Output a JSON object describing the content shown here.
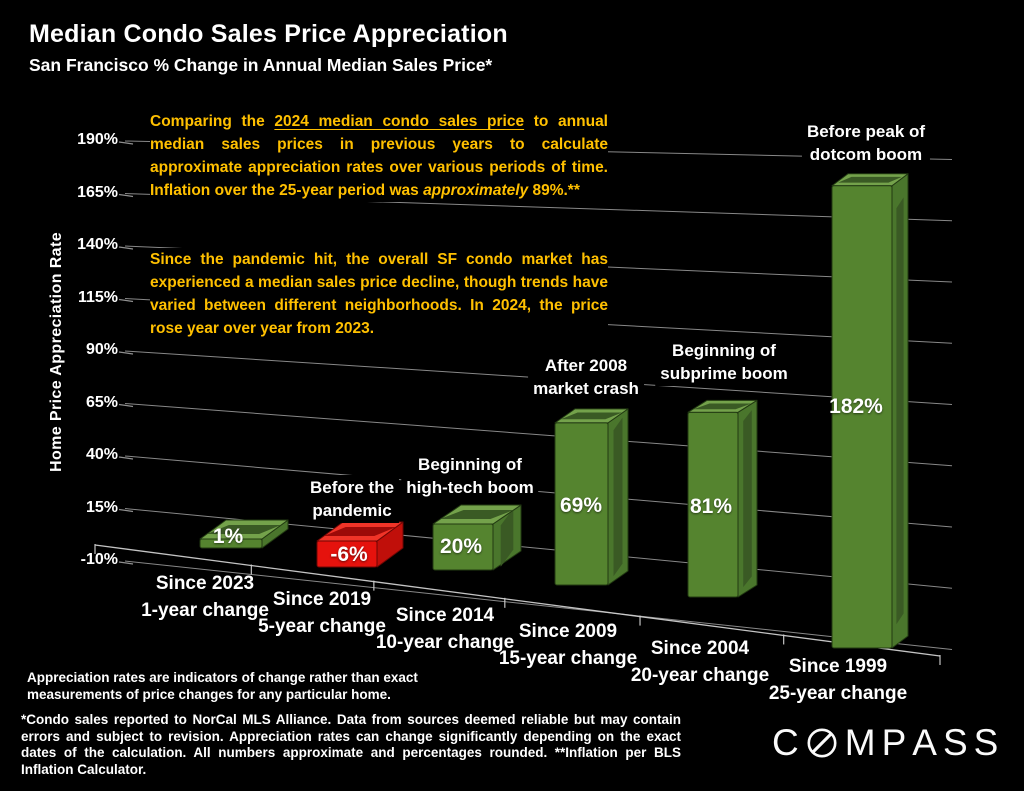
{
  "header": {
    "title": "Median Condo Sales Price Appreciation",
    "subtitle": "San Francisco % Change in Annual Median Sales Price*"
  },
  "commentary": {
    "p1_before": "Comparing the ",
    "p1_underlined": "2024 median condo sales price",
    "p1_mid": " to annual median sales prices in previous years to calculate approximate appreciation rates over various periods of time. Inflation over the 25-year period was ",
    "p1_italic": "approximately",
    "p1_end": " 89%.**",
    "p2": "Since the pandemic hit, the overall SF condo market has experienced a median sales price decline, though trends have varied between different neighborhoods. In 2024, the price rose year over year from 2023."
  },
  "chart_data": {
    "type": "bar",
    "title": "Median Condo Sales Price Appreciation",
    "subtitle": "San Francisco % Change in Annual Median Sales Price*",
    "ylabel": "Home Price Appreciation Rate",
    "xlabel": "",
    "ylim": [
      -10,
      190
    ],
    "ytick_interval": 25,
    "yticks": [
      "190%",
      "165%",
      "140%",
      "115%",
      "90%",
      "65%",
      "40%",
      "15%",
      "-10%"
    ],
    "grid": true,
    "legend": false,
    "style": "3d-perspective-bars",
    "categories": [
      [
        "Since 2023",
        "1-year change"
      ],
      [
        "Since 2019",
        "5-year change"
      ],
      [
        "Since 2014",
        "10-year change"
      ],
      [
        "Since 2009",
        "15-year change"
      ],
      [
        "Since 2004",
        "20-year change"
      ],
      [
        "Since 1999",
        "25-year change"
      ]
    ],
    "values": [
      1,
      -6,
      20,
      69,
      81,
      182
    ],
    "value_labels": [
      "1%",
      "-6%",
      "20%",
      "69%",
      "81%",
      "182%"
    ],
    "annotations": [
      {
        "bar": 1,
        "lines": [
          "Before the",
          "pandemic"
        ]
      },
      {
        "bar": 2,
        "lines": [
          "Beginning of",
          "high-tech boom"
        ]
      },
      {
        "bar": 3,
        "lines": [
          "After 2008",
          "market crash"
        ]
      },
      {
        "bar": 4,
        "lines": [
          "Beginning of",
          "subprime boom"
        ]
      },
      {
        "bar": 5,
        "lines": [
          "Before peak of",
          "dotcom boom"
        ]
      }
    ],
    "colors": {
      "background": "#000000",
      "text": "#ffffff",
      "accent_yellow": "#ffc000",
      "grid": "#a0a0a0",
      "floor_edge": "#cfcfcf",
      "positive": {
        "front": "#55842f",
        "top": "#74a24b",
        "side": "#4a762c",
        "inset": "#3a5a24",
        "outline": "#223a12"
      },
      "negative": {
        "front": "#e5120d",
        "top": "#f03428",
        "side": "#c00f0a",
        "inset": "#9c0a08",
        "outline": "#6e0604"
      }
    }
  },
  "footnotes": {
    "note1": "Appreciation rates are indicators of change rather than exact measurements of price changes for any particular home.",
    "note2": "*Condo sales reported to NorCal MLS Alliance. Data from sources deemed reliable but may contain errors and subject to revision. Appreciation rates can change significantly depending on the exact dates of the calculation. All numbers approximate and percentages rounded. **Inflation per BLS Inflation Calculator."
  },
  "brand": {
    "logo_text": "COMPASS"
  }
}
